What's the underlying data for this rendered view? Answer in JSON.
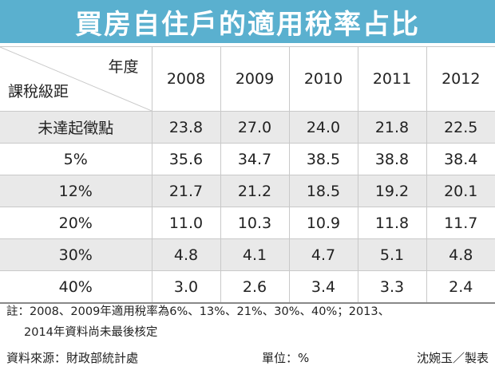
{
  "title": "買房自住戶的適用稅率占比",
  "header": {
    "corner_top": "年度",
    "corner_bottom": "課稅級距"
  },
  "chart_data": {
    "type": "table",
    "title": "買房自住戶的適用稅率占比",
    "columns": [
      "2008",
      "2009",
      "2010",
      "2011",
      "2012"
    ],
    "rows": [
      {
        "label": "未達起徵點",
        "values": [
          "23.8",
          "27.0",
          "24.0",
          "21.8",
          "22.5"
        ]
      },
      {
        "label": "5%",
        "values": [
          "35.6",
          "34.7",
          "38.5",
          "38.8",
          "38.4"
        ]
      },
      {
        "label": "12%",
        "values": [
          "21.7",
          "21.2",
          "18.5",
          "19.2",
          "20.1"
        ]
      },
      {
        "label": "20%",
        "values": [
          "11.0",
          "10.3",
          "10.9",
          "11.8",
          "11.7"
        ]
      },
      {
        "label": "30%",
        "values": [
          "4.8",
          "4.1",
          "4.7",
          "5.1",
          "4.8"
        ]
      },
      {
        "label": "40%",
        "values": [
          "3.0",
          "2.6",
          "3.4",
          "3.3",
          "2.4"
        ]
      }
    ]
  },
  "note": {
    "line1": "註：2008、2009年適用稅率為6%、13%、21%、30%、40%；2013、",
    "line2": "2014年資料尚未最後核定"
  },
  "footer": {
    "source": "資料來源：財政部統計處",
    "unit": "單位：%",
    "credit": "沈婉玉／製表"
  },
  "colors": {
    "title_bg": "#5ab0cf",
    "shade_row": "#e9e9e9"
  }
}
